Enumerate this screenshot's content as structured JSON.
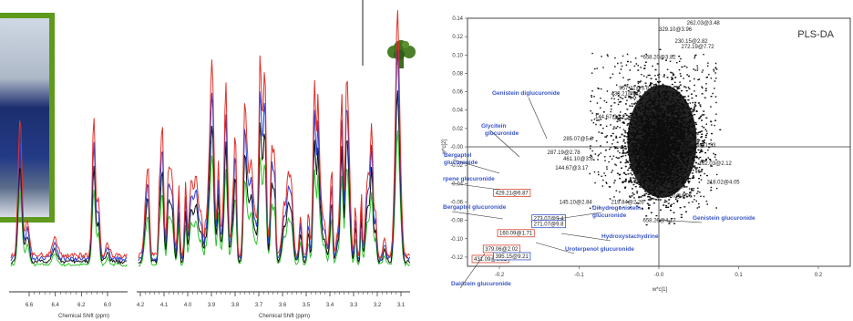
{
  "left_axis": {
    "label": "Chemical Shift (ppm)",
    "ticks": [
      "6.6",
      "6.4",
      "6.2",
      "6.0"
    ]
  },
  "mid_axis": {
    "label": "Chemical Shift (ppm)",
    "ticks": [
      "4.2",
      "4.1",
      "4.0",
      "3.9",
      "3.8",
      "3.7",
      "3.6",
      "3.5",
      "3.4",
      "3.3",
      "3.2",
      "3.1"
    ]
  },
  "colors": {
    "red": "#e0302a",
    "blue": "#2b3ed0",
    "black": "#111111",
    "green": "#2ec42e",
    "frame": "#5e9a1c",
    "label_blue": "#3a56c8",
    "box_red": "#d9452f"
  },
  "icons": {
    "broccoli": "broccoli-icon"
  },
  "chart_data": {
    "type": "scatter",
    "title": "PLS-DA",
    "xlabel": "w*c[1]",
    "ylabel": "w*c[2]",
    "xlim": [
      -0.24,
      0.24
    ],
    "ylim": [
      -0.13,
      0.14
    ],
    "x_ticks": [
      "-0.2",
      "-0.1",
      "-0.0",
      "0.1",
      "0.2"
    ],
    "y_ticks": [
      "0.14",
      "0.12",
      "0.10",
      "0.08",
      "0.06",
      "0.04",
      "0.02",
      "-0.00",
      "-0.02",
      "-0.04",
      "-0.06",
      "-0.08",
      "-0.10",
      "-0.12"
    ],
    "compound_labels": [
      "Genistein diglucuronide",
      "Glycitein glucuronide",
      "Bergaptol glucuronide",
      "rpene glucuronide",
      "Bergaptol glucuronide",
      "Daidzein glucuronide",
      "Dihydrogenistein glucuronide",
      "Genistein glucuronide",
      "Hydroxystachydrine",
      "Uroterpenol glucuronide"
    ],
    "boxed_points": [
      "429.21@6.87",
      "160.09@1.71",
      "379.06@2.02",
      "431.09@6.31",
      "273.07@9.4",
      "271.07@9.8",
      "395.15@9.21"
    ],
    "point_labels": [
      "262.03@3.48",
      "329.10@3.96",
      "230.15@2.82",
      "272.19@7.72",
      "658.20@3.82",
      "957.41@3.82",
      "430.21@9.2",
      "144.67@3.2",
      "285.07@5.8",
      "287.19@2.78",
      "461.10@3.8",
      "144.67@3.17",
      "145.10@2.84",
      "219.84@2.26",
      "202.09@2.76",
      "658.20@4.17",
      "209.20@4.06",
      "100.09@1.33",
      "162.03@2.12",
      "218.02@4.05"
    ]
  }
}
